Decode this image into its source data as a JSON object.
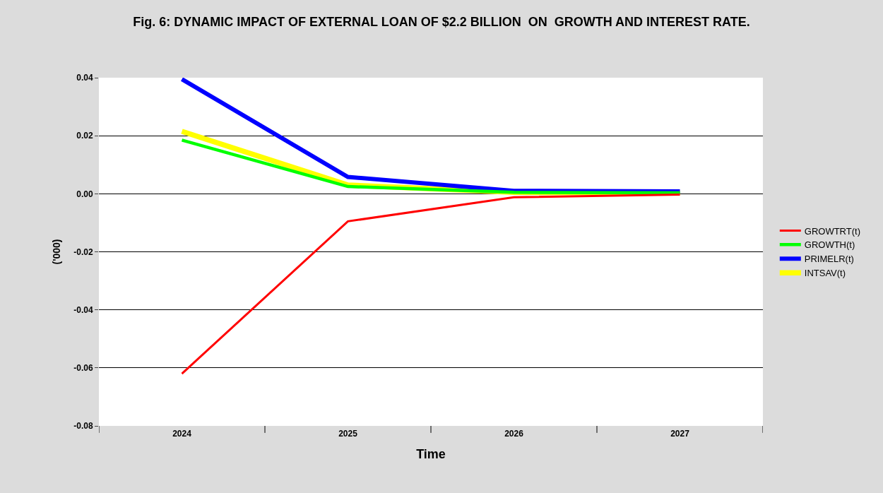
{
  "chart_data": {
    "type": "line",
    "title": "Fig. 6: DYNAMIC IMPACT OF EXTERNAL LOAN OF $2.2 BILLION  ON  GROWTH AND INTEREST RATE.",
    "xlabel": "Time",
    "ylabel": "('000)",
    "categories": [
      "2024",
      "2025",
      "2026",
      "2027"
    ],
    "series": [
      {
        "name": "GROWTRT(t)",
        "color": "#ff0000",
        "values": [
          -0.062,
          -0.0095,
          -0.0012,
          -0.0003
        ]
      },
      {
        "name": "GROWTH(t)",
        "color": "#00ff00",
        "values": [
          0.0185,
          0.0025,
          0.0005,
          0.0003
        ]
      },
      {
        "name": "PRIMELR(t)",
        "color": "#0000ff",
        "values": [
          0.0395,
          0.0058,
          0.001,
          0.0008
        ]
      },
      {
        "name": "INTSAV(t)",
        "color": "#ffff00",
        "values": [
          0.0215,
          0.003,
          0.0005,
          0.0003
        ]
      }
    ],
    "ylim": [
      -0.08,
      0.04
    ],
    "yticks": [
      {
        "value": -0.08,
        "label": "-0.08"
      },
      {
        "value": -0.06,
        "label": "-0.06"
      },
      {
        "value": -0.04,
        "label": "-0.04"
      },
      {
        "value": -0.02,
        "label": "-0.02"
      },
      {
        "value": 0,
        "label": "0.00"
      },
      {
        "value": 0.02,
        "label": "0.02"
      },
      {
        "value": 0.04,
        "label": "0.04"
      }
    ],
    "grid": "y",
    "legend": "right",
    "marker": "none",
    "line_style": "solid"
  }
}
